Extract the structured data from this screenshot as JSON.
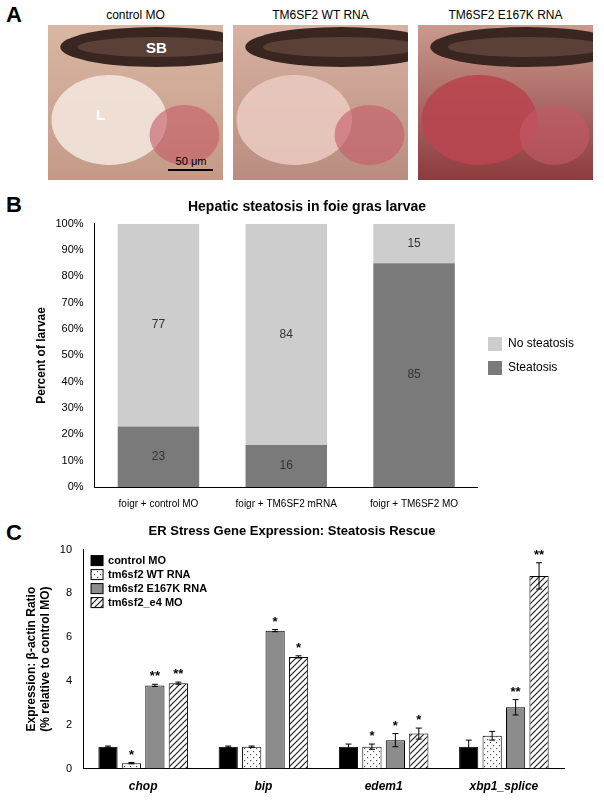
{
  "panel_a": {
    "panel": "A",
    "images": [
      {
        "label": "control MO",
        "annotations": [
          "SB",
          "L"
        ],
        "scale_bar": "50 μm"
      },
      {
        "label": "TM6SF2 WT RNA"
      },
      {
        "label": "TM6SF2 E167K RNA"
      }
    ]
  },
  "chart_data": [
    {
      "panel": "B",
      "type": "bar",
      "stacked": true,
      "title": "Hepatic steatosis in foie gras larvae",
      "y_label": "Percent of larvae",
      "categories": [
        "foigr + control MO",
        "foigr + TM6SF2 mRNA",
        "foigr + TM6SF2 MO"
      ],
      "series": [
        {
          "name": "Steatosis",
          "color": "#7a7a7a",
          "values": [
            23,
            16,
            85
          ]
        },
        {
          "name": "No steatosis",
          "color": "#cdcdcd",
          "values": [
            77,
            84,
            15
          ]
        }
      ],
      "ylim": [
        0,
        100
      ],
      "yticks": [
        {
          "value": 0,
          "label": "0%"
        },
        {
          "value": 10,
          "label": "10%"
        },
        {
          "value": 20,
          "label": "20%"
        },
        {
          "value": 30,
          "label": "30%"
        },
        {
          "value": 40,
          "label": "40%"
        },
        {
          "value": 50,
          "label": "50%"
        },
        {
          "value": 60,
          "label": "60%"
        },
        {
          "value": 70,
          "label": "70%"
        },
        {
          "value": 80,
          "label": "80%"
        },
        {
          "value": 90,
          "label": "90%"
        },
        {
          "value": 100,
          "label": "100%"
        }
      ],
      "grid": false,
      "legend": "right",
      "data_labels": true
    },
    {
      "panel": "C",
      "type": "bar",
      "title": "ER Stress Gene Expression: Steatosis Rescue",
      "y_label": [
        "Expression: β-actin Ratio",
        "(% relative to control MO)"
      ],
      "categories": [
        "chop",
        "bip",
        "edem1",
        "xbp1_splice"
      ],
      "series": [
        {
          "name": "control MO",
          "color": "#000000",
          "values": [
            1,
            1,
            1,
            1
          ],
          "errors": [
            0.03,
            0.03,
            0.12,
            0.3
          ],
          "significance": [
            null,
            null,
            null,
            null
          ]
        },
        {
          "name": "tm6sf2 WT RNA",
          "color": "#ffffff",
          "values": [
            0.25,
            1.0,
            1.0,
            1.5
          ],
          "errors": [
            0.03,
            0.03,
            0.12,
            0.2
          ],
          "significance": [
            "*",
            null,
            "*",
            null
          ]
        },
        {
          "name": "tm6sf2 E167K RNA",
          "color": "#8c8c8c",
          "values": [
            3.8,
            6.3,
            1.3,
            2.8
          ],
          "errors": [
            0.05,
            0.05,
            0.3,
            0.35
          ],
          "significance": [
            "**",
            "*",
            "*",
            "**"
          ]
        },
        {
          "name": "tm6sf2_e4 MO",
          "color": "#ffffff",
          "values": [
            3.9,
            5.1,
            1.6,
            8.8
          ],
          "errors": [
            0.05,
            0.05,
            0.25,
            0.6
          ],
          "significance": [
            "**",
            "*",
            "*",
            "**"
          ]
        }
      ],
      "ylim": [
        0,
        10
      ],
      "yticks": [
        0,
        2,
        4,
        6,
        8,
        10
      ],
      "grid": false,
      "legend": "upper left"
    }
  ]
}
